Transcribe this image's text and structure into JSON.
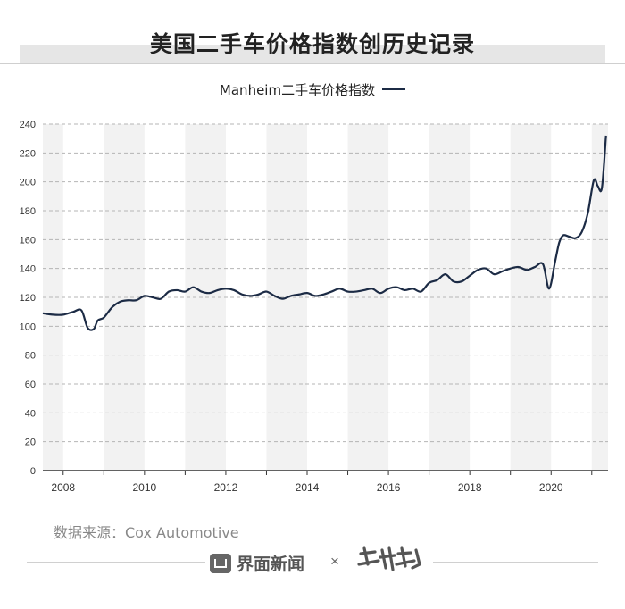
{
  "page": {
    "title": "美国二手车价格指数创历史记录",
    "source": "数据来源：Cox Automotive",
    "footer_brand": "界面新闻",
    "footer_separator": "×"
  },
  "chart_data": {
    "type": "line",
    "title": "美国二手车价格指数创历史记录",
    "xlabel": "",
    "ylabel": "",
    "ylim": [
      0,
      240
    ],
    "xlim": [
      2007.5,
      2021.4
    ],
    "y_ticks": [
      0,
      20,
      40,
      60,
      80,
      100,
      120,
      140,
      160,
      180,
      200,
      220,
      240
    ],
    "x_tick_labels": [
      "2008",
      "2010",
      "2012",
      "2014",
      "2016",
      "2018",
      "2020"
    ],
    "x_ticks": [
      2008,
      2010,
      2012,
      2014,
      2016,
      2018,
      2020
    ],
    "grid": "horizontal dashed",
    "legend_position": "top-center",
    "series": [
      {
        "name": "Manheim二手车价格指数",
        "color": "#1c2b45",
        "x": [
          2007.5,
          2007.75,
          2008.0,
          2008.25,
          2008.45,
          2008.6,
          2008.75,
          2008.85,
          2009.0,
          2009.2,
          2009.4,
          2009.6,
          2009.8,
          2010.0,
          2010.2,
          2010.4,
          2010.6,
          2010.8,
          2011.0,
          2011.2,
          2011.4,
          2011.6,
          2011.8,
          2012.0,
          2012.2,
          2012.4,
          2012.6,
          2012.8,
          2013.0,
          2013.2,
          2013.4,
          2013.6,
          2013.8,
          2014.0,
          2014.2,
          2014.4,
          2014.6,
          2014.8,
          2015.0,
          2015.2,
          2015.4,
          2015.6,
          2015.8,
          2016.0,
          2016.2,
          2016.4,
          2016.6,
          2016.8,
          2017.0,
          2017.2,
          2017.4,
          2017.6,
          2017.8,
          2018.0,
          2018.2,
          2018.4,
          2018.6,
          2018.8,
          2019.0,
          2019.2,
          2019.4,
          2019.6,
          2019.8,
          2019.95,
          2020.1,
          2020.2,
          2020.3,
          2020.45,
          2020.6,
          2020.75,
          2020.9,
          2021.05,
          2021.15,
          2021.25,
          2021.35
        ],
        "values": [
          109,
          108,
          108,
          110,
          111,
          99,
          98,
          104,
          106,
          113,
          117,
          118,
          118,
          121,
          120,
          119,
          124,
          125,
          124,
          127,
          124,
          123,
          125,
          126,
          125,
          122,
          121,
          122,
          124,
          121,
          119,
          121,
          122,
          123,
          121,
          122,
          124,
          126,
          124,
          124,
          125,
          126,
          123,
          126,
          127,
          125,
          126,
          124,
          130,
          132,
          136,
          131,
          131,
          135,
          139,
          140,
          136,
          138,
          140,
          141,
          139,
          141,
          143,
          126,
          145,
          158,
          163,
          162,
          161,
          165,
          178,
          201,
          197,
          196,
          232
        ]
      }
    ]
  }
}
